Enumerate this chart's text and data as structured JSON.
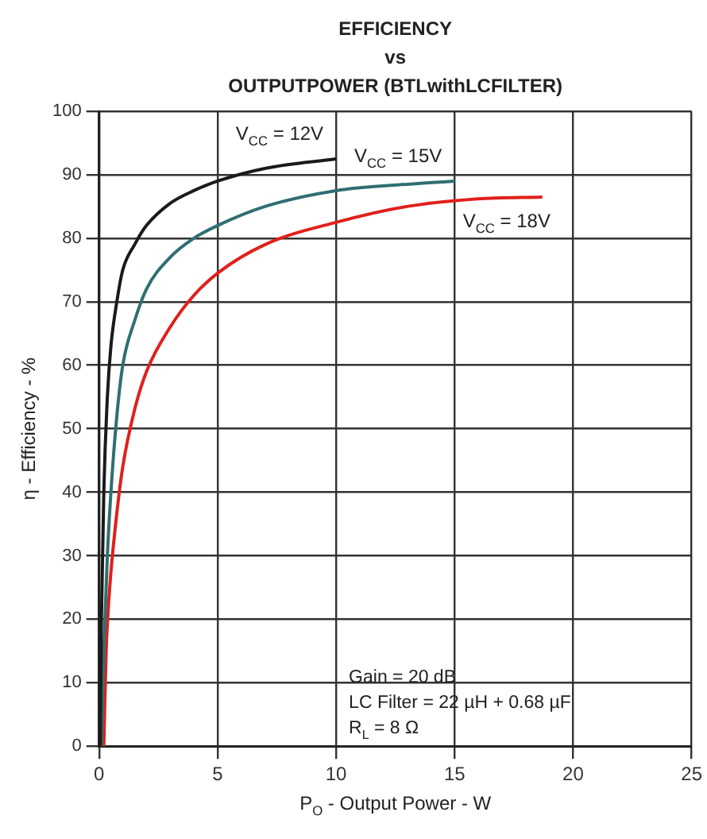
{
  "chart_data": {
    "type": "line",
    "title": "EFFICIENCY\nvs\nOUTPUTPOWER (BTLwithLCFILTER)",
    "xlabel": "P$_{O}$ - Output Power - W",
    "ylabel": "η - Efficiency - %",
    "xlim": [
      0,
      25
    ],
    "xticks": [
      0,
      5,
      10,
      15,
      20,
      25
    ],
    "ylim": [
      0,
      100
    ],
    "yticks": [
      0,
      10,
      20,
      30,
      40,
      50,
      60,
      70,
      80,
      90,
      100
    ],
    "grid": true,
    "legend": false,
    "marker": "none",
    "line_style": "solid",
    "series": [
      {
        "name": "V$_{CC}$ = 12V",
        "color": "#1a1a1a",
        "x": [
          0.05,
          0.1,
          0.2,
          0.35,
          0.5,
          0.75,
          1,
          1.5,
          2,
          3,
          4,
          5,
          7,
          10
        ],
        "values": [
          0,
          20,
          40,
          55,
          63,
          70,
          75,
          79,
          82,
          85.5,
          87.5,
          89,
          91,
          92.5
        ]
      },
      {
        "name": "V$_{CC}$ = 15V",
        "color": "#2f6f73",
        "x": [
          0.1,
          0.2,
          0.35,
          0.5,
          0.75,
          1,
          1.5,
          2,
          3,
          4,
          5,
          7,
          10,
          13,
          15
        ],
        "values": [
          0,
          15,
          30,
          40,
          52,
          60,
          67,
          72,
          77,
          80,
          82,
          85,
          87.5,
          88.5,
          89
        ]
      },
      {
        "name": "V$_{CC}$ = 18V",
        "color": "#e0201b",
        "x": [
          0.2,
          0.3,
          0.45,
          0.7,
          1,
          1.5,
          2,
          3,
          4,
          5,
          7,
          10,
          13,
          16,
          18.7
        ],
        "values": [
          0,
          15,
          25,
          35,
          44,
          53,
          59,
          66,
          71,
          74.5,
          79,
          82.5,
          85,
          86.2,
          86.5
        ]
      }
    ],
    "annotations": [
      "Gain = 20 dB",
      "LC Filter = 22 µH + 0.68 µF",
      "R$_{L}$ = 8 Ω"
    ]
  }
}
